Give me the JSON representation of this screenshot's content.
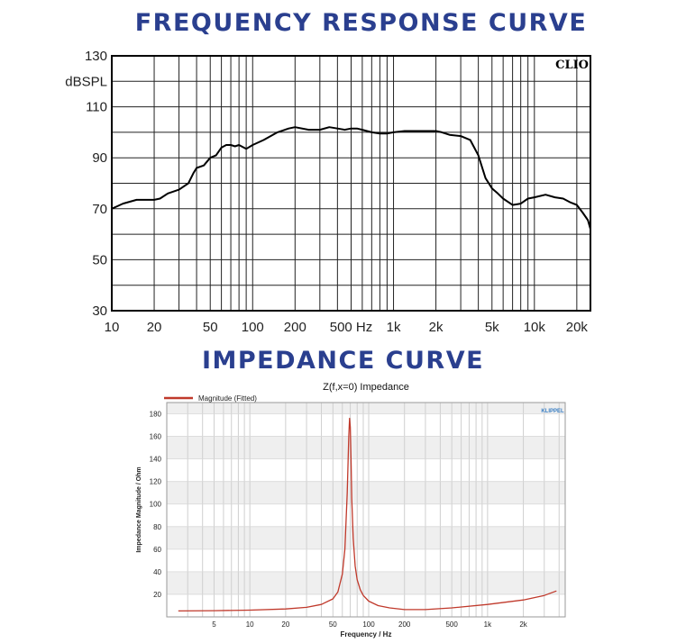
{
  "frequency_heading": "FREQUENCY RESPONSE CURVE",
  "impedance_heading": "IMPEDANCE CURVE",
  "colors": {
    "heading": "#2a3f8f",
    "fr_line": "#000000",
    "imp_line": "#c0392b",
    "band": "#efefef"
  },
  "chart_data": [
    {
      "type": "line",
      "id": "frequency-response",
      "title": "FREQUENCY RESPONSE CURVE",
      "ylabel": "dBSPL",
      "xlabel": "",
      "xscale": "log",
      "xlim": [
        10,
        25000
      ],
      "ylim": [
        30,
        130
      ],
      "brand": "CLIO",
      "x_ticks": [
        {
          "value": 10,
          "label": "10"
        },
        {
          "value": 20,
          "label": "20"
        },
        {
          "value": 50,
          "label": "50"
        },
        {
          "value": 100,
          "label": "100"
        },
        {
          "value": 200,
          "label": "200"
        },
        {
          "value": 500,
          "label": "500 Hz"
        },
        {
          "value": 1000,
          "label": "1k"
        },
        {
          "value": 2000,
          "label": "2k"
        },
        {
          "value": 5000,
          "label": "5k"
        },
        {
          "value": 10000,
          "label": "10k"
        },
        {
          "value": 20000,
          "label": "20k"
        }
      ],
      "y_ticks": [
        30,
        50,
        70,
        90,
        110,
        130
      ],
      "series": [
        {
          "name": "SPL",
          "x": [
            10,
            12,
            15,
            20,
            22,
            25,
            30,
            35,
            38,
            40,
            45,
            50,
            55,
            60,
            65,
            70,
            75,
            80,
            90,
            100,
            120,
            150,
            180,
            200,
            250,
            300,
            350,
            400,
            450,
            500,
            550,
            600,
            700,
            800,
            900,
            1000,
            1200,
            1500,
            1800,
            2000,
            2200,
            2500,
            3000,
            3500,
            4000,
            4500,
            5000,
            5500,
            6000,
            7000,
            8000,
            9000,
            10000,
            12000,
            14000,
            16000,
            18000,
            20000,
            22000,
            24000,
            25000
          ],
          "values": [
            70,
            72,
            73.5,
            73.5,
            74,
            76,
            77.5,
            80,
            84,
            86,
            87,
            90,
            91,
            94,
            95,
            95,
            94.5,
            95,
            93.5,
            95,
            97,
            100,
            101.5,
            102,
            101,
            101,
            102,
            101.5,
            101,
            101.5,
            101.5,
            101,
            100,
            99.5,
            99.5,
            100,
            100.5,
            100.5,
            100.5,
            100.5,
            100,
            99,
            98.5,
            97,
            91,
            82,
            78,
            76,
            74,
            71.5,
            72,
            74,
            74.5,
            75.5,
            74.5,
            74,
            72.5,
            71.5,
            68.5,
            65.5,
            62
          ]
        }
      ]
    },
    {
      "type": "line",
      "id": "impedance",
      "title": "Z(f,x=0) Impedance",
      "xlabel": "Frequency / Hz",
      "ylabel": "Impedance Magnitude / Ohm",
      "xscale": "log",
      "xlim": [
        2,
        4500
      ],
      "ylim": [
        0,
        190
      ],
      "brand": "KLIPPEL",
      "legend": "Magnitude (Fitted)",
      "legend_position": "top-left",
      "x_ticks": [
        {
          "value": 5,
          "label": "5"
        },
        {
          "value": 10,
          "label": "10"
        },
        {
          "value": 20,
          "label": "20"
        },
        {
          "value": 50,
          "label": "50"
        },
        {
          "value": 100,
          "label": "100"
        },
        {
          "value": 200,
          "label": "200"
        },
        {
          "value": 500,
          "label": "500"
        },
        {
          "value": 1000,
          "label": "1k"
        },
        {
          "value": 2000,
          "label": "2k"
        }
      ],
      "y_ticks": [
        20,
        40,
        60,
        80,
        100,
        120,
        140,
        160,
        180
      ],
      "series": [
        {
          "name": "Magnitude (Fitted)",
          "x": [
            2.5,
            5,
            10,
            20,
            30,
            40,
            50,
            55,
            60,
            63,
            66,
            68,
            69,
            70,
            71,
            72,
            74,
            77,
            80,
            85,
            90,
            100,
            120,
            150,
            200,
            300,
            500,
            1000,
            2000,
            3000,
            3800
          ],
          "values": [
            5.3,
            5.5,
            6,
            7,
            8.5,
            11,
            16,
            22,
            38,
            60,
            110,
            160,
            176,
            168,
            140,
            105,
            70,
            45,
            33,
            24,
            19,
            14,
            10,
            8,
            6.5,
            6.5,
            8,
            11,
            15,
            19,
            23
          ]
        }
      ]
    }
  ]
}
